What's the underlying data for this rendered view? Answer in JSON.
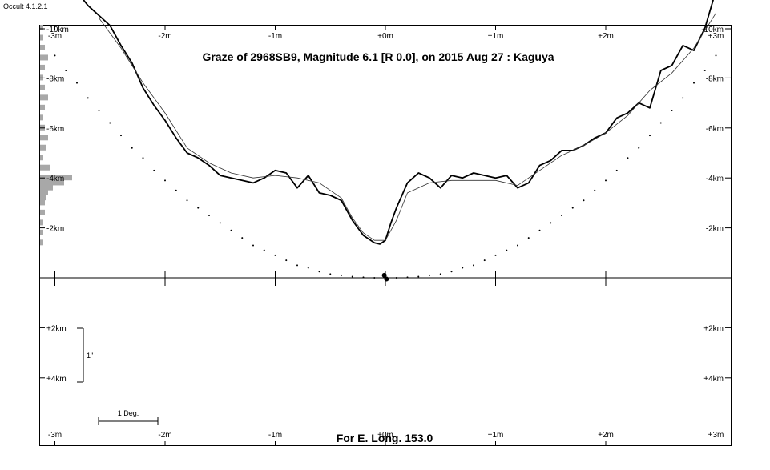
{
  "app": {
    "version_label": "Occult 4.1.2.1"
  },
  "chart_data": {
    "type": "line",
    "title": "Graze of  2968SB9,  Magnitude 6.1 [R 0.0],  on 2015 Aug 27  :  Kaguya",
    "footer": "For E. Long. 153.0",
    "x_ticks": [
      "-3m",
      "-2m",
      "-1m",
      "+0m",
      "+1m",
      "+2m",
      "+3m"
    ],
    "x_ticks_values": [
      -3,
      -2,
      -1,
      0,
      1,
      2,
      3
    ],
    "xlim": [
      -3.1,
      3.1
    ],
    "x_unit": "minutes",
    "upper_y_ticks": {
      "left": [
        "-10km",
        "-8km",
        "-6km",
        "-4km",
        "-2km"
      ],
      "right": [
        "-10km",
        "-8km",
        "-6km",
        "-4km",
        "-2km"
      ],
      "values": [
        -10,
        -8,
        -6,
        -4,
        -2
      ]
    },
    "upper_ylim": [
      -10.3,
      0
    ],
    "lower_y_ticks": {
      "left": [
        "+2km",
        "+4km"
      ],
      "right": [
        "+2km",
        "+4km"
      ],
      "values": [
        2,
        4
      ]
    },
    "lower_ylim": [
      0,
      6.4
    ],
    "scale_bars": {
      "vertical_label": "1\"",
      "horizontal_label": "1 Deg."
    },
    "series": [
      {
        "style": "bold-profile",
        "x": [
          -3.1,
          -2.9,
          -2.7,
          -2.5,
          -2.4,
          -2.3,
          -2.2,
          -2.1,
          -2.0,
          -1.9,
          -1.8,
          -1.7,
          -1.6,
          -1.5,
          -1.4,
          -1.3,
          -1.2,
          -1.1,
          -1.0,
          -0.9,
          -0.8,
          -0.7,
          -0.6,
          -0.5,
          -0.4,
          -0.3,
          -0.2,
          -0.1,
          -0.05,
          0.0,
          0.05,
          0.1,
          0.2,
          0.3,
          0.4,
          0.5,
          0.6,
          0.7,
          0.8,
          0.9,
          1.0,
          1.1,
          1.2,
          1.3,
          1.4,
          1.5,
          1.6,
          1.7,
          1.8,
          1.9,
          2.0,
          2.1,
          2.2,
          2.3,
          2.4,
          2.5,
          2.6,
          2.7,
          2.8,
          2.9,
          3.0
        ],
        "y": [
          -13.0,
          -12.0,
          -10.9,
          -10.1,
          -9.3,
          -8.6,
          -7.6,
          -6.9,
          -6.3,
          -5.6,
          -5.0,
          -4.8,
          -4.5,
          -4.1,
          -4.0,
          -3.9,
          -3.8,
          -4.0,
          -4.3,
          -4.2,
          -3.6,
          -4.1,
          -3.4,
          -3.3,
          -3.1,
          -2.3,
          -1.7,
          -1.4,
          -1.35,
          -1.5,
          -2.2,
          -2.8,
          -3.8,
          -4.2,
          -4.0,
          -3.6,
          -4.1,
          -4.0,
          -4.2,
          -4.1,
          -4.0,
          -4.1,
          -3.6,
          -3.8,
          -4.5,
          -4.7,
          -5.1,
          -5.1,
          -5.3,
          -5.6,
          -5.8,
          -6.4,
          -6.6,
          -7.0,
          -6.8,
          -8.3,
          -8.5,
          -9.3,
          -9.1,
          -10.0,
          -11.5
        ]
      },
      {
        "style": "thin-smoothed",
        "x": [
          -2.6,
          -2.4,
          -2.2,
          -2.0,
          -1.8,
          -1.6,
          -1.4,
          -1.2,
          -1.0,
          -0.8,
          -0.6,
          -0.4,
          -0.3,
          -0.2,
          -0.1,
          0.0,
          0.1,
          0.2,
          0.4,
          0.6,
          0.8,
          1.0,
          1.2,
          1.4,
          1.6,
          1.8,
          2.0,
          2.2,
          2.4,
          2.6,
          2.8,
          3.0
        ],
        "y": [
          -10.4,
          -9.2,
          -7.8,
          -6.6,
          -5.2,
          -4.6,
          -4.2,
          -4.0,
          -4.1,
          -4.0,
          -3.8,
          -3.2,
          -2.4,
          -1.8,
          -1.5,
          -1.5,
          -2.3,
          -3.4,
          -3.8,
          -3.9,
          -3.9,
          -3.9,
          -3.7,
          -4.3,
          -4.9,
          -5.3,
          -5.8,
          -6.5,
          -7.5,
          -8.2,
          -9.2,
          -10.6
        ]
      },
      {
        "style": "dotted-limb",
        "x": [
          -3.0,
          -2.9,
          -2.8,
          -2.7,
          -2.6,
          -2.5,
          -2.4,
          -2.3,
          -2.2,
          -2.1,
          -2.0,
          -1.9,
          -1.8,
          -1.7,
          -1.6,
          -1.5,
          -1.4,
          -1.3,
          -1.2,
          -1.1,
          -1.0,
          -0.9,
          -0.8,
          -0.7,
          -0.6,
          -0.5,
          -0.4,
          -0.3,
          -0.2,
          -0.1,
          0.0,
          0.1,
          0.2,
          0.3,
          0.4,
          0.5,
          0.6,
          0.7,
          0.8,
          0.9,
          1.0,
          1.1,
          1.2,
          1.3,
          1.4,
          1.5,
          1.6,
          1.7,
          1.8,
          1.9,
          2.0,
          2.1,
          2.2,
          2.3,
          2.4,
          2.5,
          2.6,
          2.7,
          2.8,
          2.9,
          3.0
        ],
        "y": [
          -8.9,
          -8.3,
          -7.8,
          -7.2,
          -6.7,
          -6.2,
          -5.7,
          -5.2,
          -4.8,
          -4.3,
          -3.9,
          -3.5,
          -3.1,
          -2.8,
          -2.5,
          -2.2,
          -1.9,
          -1.6,
          -1.3,
          -1.1,
          -0.9,
          -0.7,
          -0.5,
          -0.4,
          -0.25,
          -0.15,
          -0.1,
          -0.05,
          -0.02,
          0.0,
          0.0,
          0.0,
          -0.02,
          -0.05,
          -0.1,
          -0.15,
          -0.25,
          -0.4,
          -0.5,
          -0.7,
          -0.9,
          -1.1,
          -1.3,
          -1.6,
          -1.9,
          -2.2,
          -2.5,
          -2.8,
          -3.1,
          -3.5,
          -3.9,
          -4.3,
          -4.8,
          -5.2,
          -5.7,
          -6.2,
          -6.7,
          -7.2,
          -7.8,
          -8.3,
          -8.9
        ]
      }
    ],
    "markers": [
      {
        "x": -0.01,
        "y": -0.1
      },
      {
        "x": 0.01,
        "y": 0.05
      }
    ],
    "histogram": {
      "y": [
        -10.0,
        -9.6,
        -9.2,
        -8.8,
        -8.4,
        -8.0,
        -7.6,
        -7.2,
        -6.8,
        -6.4,
        -6.0,
        -5.6,
        -5.2,
        -4.8,
        -4.4,
        -4.0,
        -3.8,
        -3.6,
        -3.4,
        -3.2,
        -3.0,
        -2.6,
        -2.2,
        -1.8,
        -1.4
      ],
      "values": [
        4,
        4,
        6,
        10,
        6,
        4,
        6,
        10,
        6,
        4,
        6,
        10,
        8,
        4,
        12,
        40,
        30,
        16,
        10,
        8,
        6,
        6,
        4,
        4,
        4
      ]
    },
    "grid": false,
    "legend": "none"
  }
}
